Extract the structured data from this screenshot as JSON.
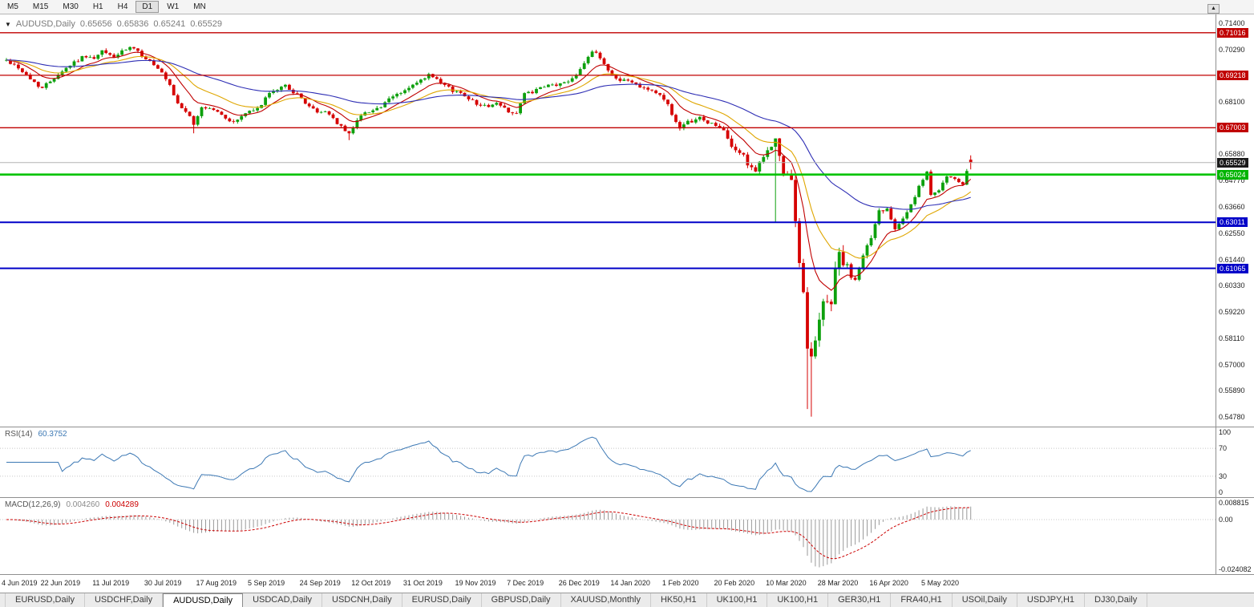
{
  "toolbar": {
    "timeframes": [
      "M5",
      "M15",
      "M30",
      "H1",
      "H4",
      "D1",
      "W1",
      "MN"
    ],
    "selected": "D1"
  },
  "chart_header": {
    "collapse_icon": "▼",
    "title": "AUDUSD,Daily",
    "open": "0.65656",
    "high": "0.65836",
    "low": "0.65241",
    "close": "0.65529"
  },
  "shift_button": {
    "icon": "▲"
  },
  "price_axis": {
    "ticks": [
      "0.71400",
      "0.70290",
      "0.68100",
      "0.65880",
      "0.64770",
      "0.63660",
      "0.62550",
      "0.61440",
      "0.60330",
      "0.59220",
      "0.58110",
      "0.57000",
      "0.55890",
      "0.54780"
    ],
    "badges": [
      {
        "value": 0.71016,
        "label": "0.71016",
        "color": "#c00000"
      },
      {
        "value": 0.69218,
        "label": "0.69218",
        "color": "#c00000"
      },
      {
        "value": 0.67003,
        "label": "0.67003",
        "color": "#c00000"
      },
      {
        "value": 0.65529,
        "label": "0.65529",
        "color": "#1a1a1a"
      },
      {
        "value": 0.65024,
        "label": "0.65024",
        "color": "#00b400"
      },
      {
        "value": 0.63011,
        "label": "0.63011",
        "color": "#0000c8"
      },
      {
        "value": 0.61065,
        "label": "0.61065",
        "color": "#0000c8"
      }
    ]
  },
  "rsi_panel": {
    "name": "RSI(14)",
    "value": "60.3752",
    "axis": [
      100,
      70,
      30,
      0
    ],
    "dotted_levels": [
      70,
      30
    ]
  },
  "macd_panel": {
    "name": "MACD(12,26,9)",
    "value_main": "0.004260",
    "value_signal": "0.004289",
    "axis": [
      {
        "label": "0.008815",
        "value": 0.008815
      },
      {
        "label": "0.00",
        "value": 0
      },
      {
        "label": "-0.024082",
        "value": -0.024082
      }
    ]
  },
  "time_axis": {
    "labels": [
      "4 Jun 2019",
      "22 Jun 2019",
      "11 Jul 2019",
      "30 Jul 2019",
      "17 Aug 2019",
      "5 Sep 2019",
      "24 Sep 2019",
      "12 Oct 2019",
      "31 Oct 2019",
      "19 Nov 2019",
      "7 Dec 2019",
      "26 Dec 2019",
      "14 Jan 2020",
      "1 Feb 2020",
      "20 Feb 2020",
      "10 Mar 2020",
      "28 Mar 2020",
      "16 Apr 2020",
      "5 May 2020"
    ]
  },
  "tabs": [
    {
      "label": "EURUSD,Daily",
      "selected": false
    },
    {
      "label": "USDCHF,Daily",
      "selected": false
    },
    {
      "label": "AUDUSD,Daily",
      "selected": true
    },
    {
      "label": "USDCAD,Daily",
      "selected": false
    },
    {
      "label": "USDCNH,Daily",
      "selected": false
    },
    {
      "label": "EURUSD,Daily",
      "selected": false
    },
    {
      "label": "GBPUSD,Daily",
      "selected": false
    },
    {
      "label": "XAUUSD,Monthly",
      "selected": false
    },
    {
      "label": "HK50,H1",
      "selected": false
    },
    {
      "label": "UK100,H1",
      "selected": false
    },
    {
      "label": "UK100,H1",
      "selected": false
    },
    {
      "label": "GER30,H1",
      "selected": false
    },
    {
      "label": "FRA40,H1",
      "selected": false
    },
    {
      "label": "USOil,Daily",
      "selected": false
    },
    {
      "label": "USDJPY,H1",
      "selected": false
    },
    {
      "label": "DJ30,Daily",
      "selected": false
    }
  ],
  "colors": {
    "up": "#0da00d",
    "down": "#d60000",
    "ma_fast": "#c00000",
    "ma_mid": "#dfa600",
    "ma_slow": "#2d2db4",
    "rsi": "#3c78b4",
    "macd_hist": "#9a9a9a",
    "macd_signal": "#cc0000",
    "hline_red": "#c00000",
    "hline_green": "#00c300",
    "hline_blue": "#0000c8",
    "price_line": "#b4b4b4",
    "grid_dotted": "#c8c8c8",
    "separator": "#8f8f8f"
  },
  "chart_data": {
    "type": "candlestick",
    "symbol": "AUDUSD",
    "timeframe": "Daily",
    "visible_range": {
      "price_min": 0.5438,
      "price_max": 0.7172,
      "date_start": "4 Jun 2019",
      "date_end": "5 May 2020"
    },
    "total_candles": 243,
    "candles_per_date_label": 13,
    "last_ohlc": [
      0.65656,
      0.65836,
      0.65241,
      0.65529
    ],
    "anchors": [
      [
        0,
        0.6985
      ],
      [
        3,
        0.6955
      ],
      [
        6,
        0.6905
      ],
      [
        9,
        0.6868
      ],
      [
        13,
        0.6928
      ],
      [
        17,
        0.6978
      ],
      [
        20,
        0.7005
      ],
      [
        22,
        0.6988
      ],
      [
        24,
        0.7022
      ],
      [
        27,
        0.7
      ],
      [
        31,
        0.7038
      ],
      [
        33,
        0.702
      ],
      [
        36,
        0.698
      ],
      [
        39,
        0.6928
      ],
      [
        41,
        0.6875
      ],
      [
        43,
        0.68
      ],
      [
        45,
        0.6772
      ],
      [
        47,
        0.6712
      ],
      [
        49,
        0.6788
      ],
      [
        52,
        0.6778
      ],
      [
        54,
        0.6752
      ],
      [
        57,
        0.6722
      ],
      [
        60,
        0.6762
      ],
      [
        63,
        0.6778
      ],
      [
        65,
        0.6828
      ],
      [
        68,
        0.6862
      ],
      [
        70,
        0.688
      ],
      [
        73,
        0.6838
      ],
      [
        76,
        0.6792
      ],
      [
        78,
        0.6762
      ],
      [
        80,
        0.6772
      ],
      [
        82,
        0.674
      ],
      [
        84,
        0.6702
      ],
      [
        86,
        0.6672
      ],
      [
        88,
        0.6738
      ],
      [
        91,
        0.6772
      ],
      [
        94,
        0.6788
      ],
      [
        97,
        0.6832
      ],
      [
        100,
        0.6858
      ],
      [
        102,
        0.6878
      ],
      [
        104,
        0.6898
      ],
      [
        106,
        0.6922
      ],
      [
        109,
        0.6888
      ],
      [
        112,
        0.6858
      ],
      [
        115,
        0.684
      ],
      [
        117,
        0.6812
      ],
      [
        120,
        0.679
      ],
      [
        123,
        0.6802
      ],
      [
        126,
        0.6772
      ],
      [
        128,
        0.676
      ],
      [
        130,
        0.6842
      ],
      [
        133,
        0.6858
      ],
      [
        136,
        0.6878
      ],
      [
        139,
        0.6884
      ],
      [
        141,
        0.6898
      ],
      [
        143,
        0.6928
      ],
      [
        145,
        0.6978
      ],
      [
        147,
        0.7022
      ],
      [
        149,
        0.6998
      ],
      [
        151,
        0.6942
      ],
      [
        153,
        0.6908
      ],
      [
        156,
        0.6898
      ],
      [
        159,
        0.6878
      ],
      [
        162,
        0.6858
      ],
      [
        164,
        0.6835
      ],
      [
        166,
        0.68
      ],
      [
        168,
        0.6722
      ],
      [
        169,
        0.6692
      ],
      [
        171,
        0.6722
      ],
      [
        174,
        0.6742
      ],
      [
        176,
        0.6722
      ],
      [
        178,
        0.6712
      ],
      [
        180,
        0.6685
      ],
      [
        182,
        0.6618
      ],
      [
        184,
        0.6598
      ],
      [
        186,
        0.6552
      ],
      [
        188,
        0.6518
      ],
      [
        190,
        0.6572
      ],
      [
        192,
        0.6632
      ],
      [
        193,
        0.6645
      ],
      [
        194,
        0.658
      ],
      [
        195,
        0.65
      ],
      [
        196,
        0.6488
      ],
      [
        197,
        0.6468
      ],
      [
        198,
        0.63
      ],
      [
        199,
        0.6125
      ],
      [
        200,
        0.601
      ],
      [
        201,
        0.5785
      ],
      [
        202,
        0.5745
      ],
      [
        203,
        0.5805
      ],
      [
        205,
        0.5958
      ],
      [
        207,
        0.5972
      ],
      [
        208,
        0.6105
      ],
      [
        209,
        0.6168
      ],
      [
        210,
        0.6132
      ],
      [
        212,
        0.6072
      ],
      [
        213,
        0.6048
      ],
      [
        215,
        0.6168
      ],
      [
        217,
        0.6232
      ],
      [
        219,
        0.6348
      ],
      [
        221,
        0.6362
      ],
      [
        223,
        0.6282
      ],
      [
        225,
        0.6322
      ],
      [
        227,
        0.6372
      ],
      [
        229,
        0.6448
      ],
      [
        231,
        0.6508
      ],
      [
        232,
        0.6422
      ],
      [
        234,
        0.6442
      ],
      [
        236,
        0.6492
      ],
      [
        238,
        0.6478
      ],
      [
        240,
        0.6462
      ],
      [
        241,
        0.6512
      ],
      [
        242,
        0.65529
      ]
    ],
    "special_wicks": [
      [
        47,
        "low",
        0.6677
      ],
      [
        86,
        "low",
        0.6648
      ],
      [
        106,
        "high",
        0.6932
      ],
      [
        193,
        "low",
        0.6302
      ],
      [
        201,
        "low",
        0.5512
      ],
      [
        202,
        "low",
        0.548
      ]
    ],
    "base_vol": 0.0017,
    "vol_regions": [
      [
        182,
        193,
        1.6
      ],
      [
        194,
        212,
        3.2
      ],
      [
        213,
        226,
        1.5
      ]
    ],
    "seed": 42,
    "moving_averages": [
      {
        "period": 10,
        "color_key": "ma_fast"
      },
      {
        "period": 21,
        "color_key": "ma_mid"
      },
      {
        "period": 55,
        "color_key": "ma_slow"
      }
    ],
    "hlines": [
      {
        "price": 0.71016,
        "color_key": "hline_red",
        "width": 1.3
      },
      {
        "price": 0.69218,
        "color_key": "hline_red",
        "width": 1.3
      },
      {
        "price": 0.67003,
        "color_key": "hline_red",
        "width": 1.3
      },
      {
        "price": 0.65529,
        "color_key": "price_line",
        "width": 1
      },
      {
        "price": 0.65024,
        "color_key": "hline_green",
        "width": 2.6
      },
      {
        "price": 0.63011,
        "color_key": "hline_blue",
        "width": 2
      },
      {
        "price": 0.61065,
        "color_key": "hline_blue",
        "width": 2
      }
    ],
    "indicators": {
      "rsi_period": 14,
      "macd": [
        12,
        26,
        9
      ],
      "rsi_current": 60.3752,
      "macd_current": [
        0.00426,
        0.004289
      ]
    }
  }
}
